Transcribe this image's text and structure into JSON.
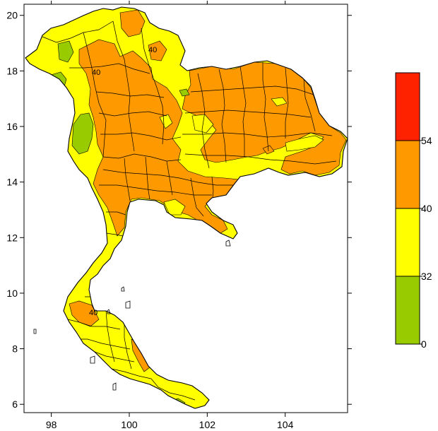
{
  "axes": {
    "x_ticks": [
      "98",
      "100",
      "102",
      "104"
    ],
    "y_ticks": [
      "6",
      "8",
      "10",
      "12",
      "14",
      "16",
      "18",
      "20"
    ],
    "xlim": [
      97.3,
      105.6
    ],
    "ylim": [
      5.7,
      20.4
    ]
  },
  "colors": {
    "green": "#99cc00",
    "yellow": "#ffff00",
    "orange": "#ff9900",
    "red": "#ff2200",
    "water": "#ffffff",
    "border": "#000000"
  },
  "legend": {
    "labels": [
      "54",
      "40",
      "32",
      "0"
    ],
    "bands": [
      {
        "color": "#ff2200",
        "range": "54+"
      },
      {
        "color": "#ff9900",
        "range": "40-54"
      },
      {
        "color": "#ffff00",
        "range": "32-40"
      },
      {
        "color": "#99cc00",
        "range": "0-32"
      }
    ]
  },
  "contour_labels": [
    "40",
    "40",
    "40"
  ]
}
